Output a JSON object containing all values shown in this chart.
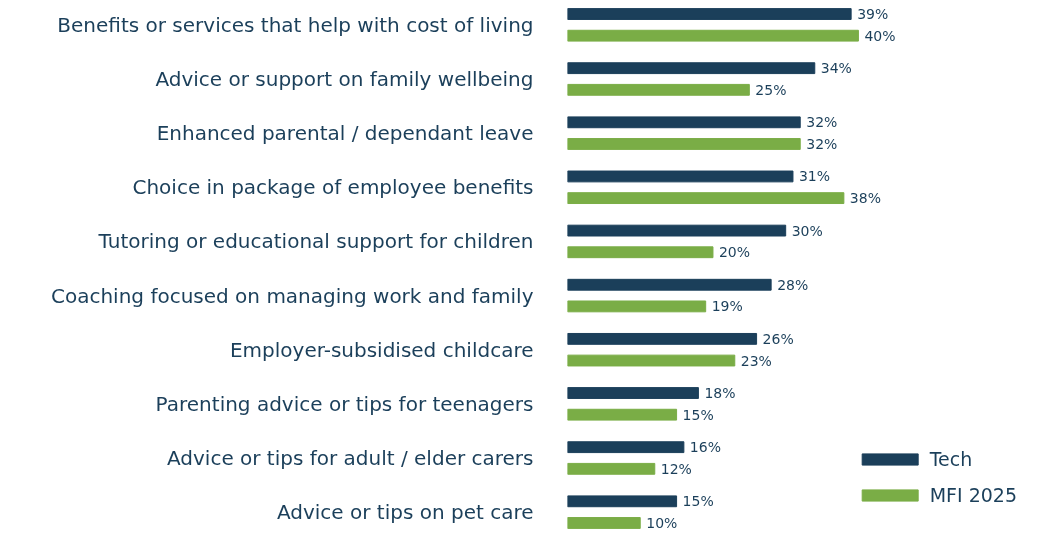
{
  "chart_data": {
    "type": "bar",
    "orientation": "horizontal",
    "categories": [
      "Benefits or services that help with cost of living",
      "Advice or support on family wellbeing",
      "Enhanced parental / dependant leave",
      "Choice in package of employee benefits",
      "Tutoring or educational support for children",
      "Coaching focused on managing work and family",
      "Employer-subsidised childcare",
      "Parenting advice or tips for teenagers",
      "Advice or tips for adult / elder carers",
      "Advice or tips on pet care"
    ],
    "series": [
      {
        "name": "Tech",
        "color": "#1b3f5a",
        "values": [
          39,
          34,
          32,
          31,
          30,
          28,
          26,
          18,
          16,
          15
        ],
        "value_labels": [
          "39%",
          "34%",
          "32%",
          "31%",
          "30%",
          "28%",
          "26%",
          "18%",
          "16%",
          "15%"
        ]
      },
      {
        "name": "MFI 2025",
        "color": "#7aad46",
        "values": [
          40,
          25,
          32,
          38,
          20,
          19,
          23,
          15,
          12,
          10
        ],
        "value_labels": [
          "40%",
          "25%",
          "32%",
          "38%",
          "20%",
          "19%",
          "23%",
          "15%",
          "12%",
          "10%"
        ]
      }
    ],
    "legend": "bottom right",
    "grid": false
  }
}
